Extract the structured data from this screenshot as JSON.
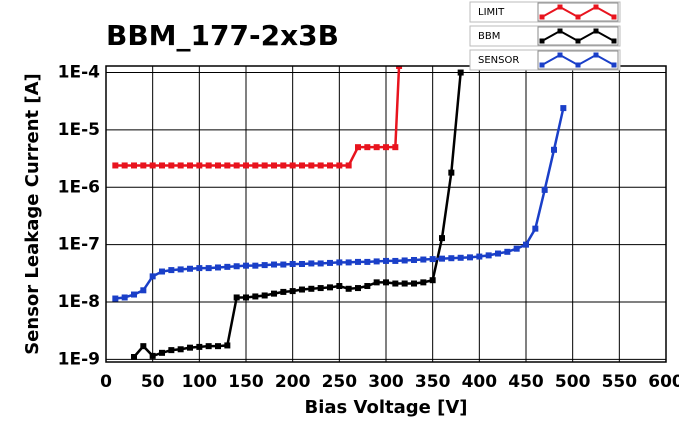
{
  "chart_data": {
    "type": "line",
    "title": "BBM_177-2x3B",
    "x_label": "Bias Voltage [V]",
    "y_label": "Sensor Leakage Current [A]",
    "log_y": true,
    "grid": true,
    "xlim": [
      0,
      600
    ],
    "xticks": [
      0,
      50,
      100,
      150,
      200,
      250,
      300,
      350,
      400,
      450,
      500,
      550,
      600
    ],
    "ylim": [
      9e-10,
      0.00013
    ],
    "yticks": [
      {
        "value": 1e-09,
        "label": "1E-9"
      },
      {
        "value": 1e-08,
        "label": "1E-8"
      },
      {
        "value": 1e-07,
        "label": "1E-7"
      },
      {
        "value": 1e-06,
        "label": "1E-6"
      },
      {
        "value": 1e-05,
        "label": "1E-5"
      },
      {
        "value": 0.0001,
        "label": "1E-4"
      }
    ],
    "series": [
      {
        "name": "LIMIT",
        "color": "#e8141e",
        "x": [
          10,
          20,
          30,
          40,
          50,
          60,
          70,
          80,
          90,
          100,
          110,
          120,
          130,
          140,
          150,
          160,
          170,
          180,
          190,
          200,
          210,
          220,
          230,
          240,
          250,
          260,
          270,
          280,
          290,
          300,
          310,
          314
        ],
        "values": [
          2.4e-06,
          2.4e-06,
          2.4e-06,
          2.4e-06,
          2.4e-06,
          2.4e-06,
          2.4e-06,
          2.4e-06,
          2.4e-06,
          2.4e-06,
          2.4e-06,
          2.4e-06,
          2.4e-06,
          2.4e-06,
          2.4e-06,
          2.4e-06,
          2.4e-06,
          2.4e-06,
          2.4e-06,
          2.4e-06,
          2.4e-06,
          2.4e-06,
          2.4e-06,
          2.4e-06,
          2.4e-06,
          2.4e-06,
          5e-06,
          5e-06,
          5e-06,
          5e-06,
          5e-06,
          0.00013
        ]
      },
      {
        "name": "BBM",
        "color": "#000000",
        "x": [
          30,
          40,
          50,
          60,
          70,
          80,
          90,
          100,
          110,
          120,
          130,
          140,
          150,
          160,
          170,
          180,
          190,
          200,
          210,
          220,
          230,
          240,
          250,
          260,
          270,
          280,
          290,
          300,
          310,
          320,
          330,
          340,
          350,
          360,
          370,
          380
        ],
        "values": [
          1.1e-09,
          1.7e-09,
          1.15e-09,
          1.3e-09,
          1.45e-09,
          1.5e-09,
          1.6e-09,
          1.65e-09,
          1.7e-09,
          1.7e-09,
          1.75e-09,
          1.2e-08,
          1.2e-08,
          1.25e-08,
          1.3e-08,
          1.4e-08,
          1.5e-08,
          1.55e-08,
          1.65e-08,
          1.7e-08,
          1.75e-08,
          1.8e-08,
          1.9e-08,
          1.7e-08,
          1.75e-08,
          1.9e-08,
          2.2e-08,
          2.2e-08,
          2.1e-08,
          2.1e-08,
          2.1e-08,
          2.2e-08,
          2.4e-08,
          1.3e-07,
          1.8e-06,
          0.0001
        ]
      },
      {
        "name": "SENSOR",
        "color": "#1a3fc8",
        "x": [
          10,
          20,
          30,
          40,
          50,
          60,
          70,
          80,
          90,
          100,
          110,
          120,
          130,
          140,
          150,
          160,
          170,
          180,
          190,
          200,
          210,
          220,
          230,
          240,
          250,
          260,
          270,
          280,
          290,
          300,
          310,
          320,
          330,
          340,
          350,
          360,
          370,
          380,
          390,
          400,
          410,
          420,
          430,
          440,
          450,
          460,
          470,
          480,
          490
        ],
        "values": [
          1.15e-08,
          1.2e-08,
          1.35e-08,
          1.6e-08,
          2.8e-08,
          3.4e-08,
          3.6e-08,
          3.7e-08,
          3.8e-08,
          3.9e-08,
          3.9e-08,
          4e-08,
          4.1e-08,
          4.2e-08,
          4.3e-08,
          4.3e-08,
          4.4e-08,
          4.5e-08,
          4.5e-08,
          4.6e-08,
          4.6e-08,
          4.7e-08,
          4.7e-08,
          4.8e-08,
          4.9e-08,
          4.9e-08,
          5e-08,
          5e-08,
          5.1e-08,
          5.2e-08,
          5.2e-08,
          5.3e-08,
          5.4e-08,
          5.5e-08,
          5.6e-08,
          5.7e-08,
          5.8e-08,
          5.9e-08,
          6e-08,
          6.2e-08,
          6.5e-08,
          7e-08,
          7.5e-08,
          8.5e-08,
          1e-07,
          1.9e-07,
          9e-07,
          4.5e-06,
          2.4e-05
        ]
      }
    ]
  }
}
